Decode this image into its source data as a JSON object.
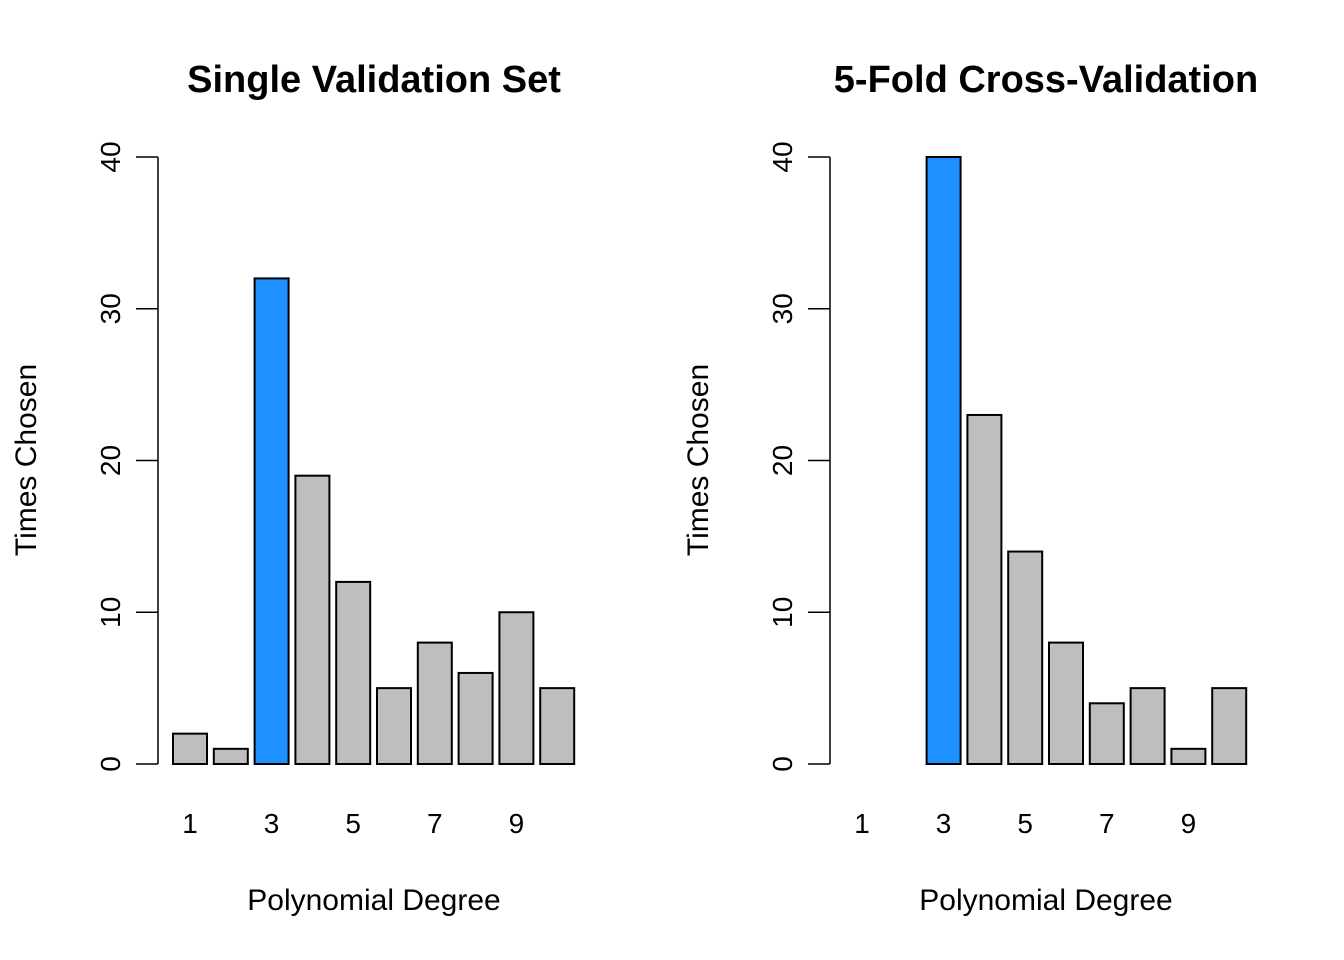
{
  "chart_data": [
    {
      "type": "bar",
      "title": "Single Validation Set",
      "xlabel": "Polynomial Degree",
      "ylabel": "Times Chosen",
      "categories": [
        "1",
        "2",
        "3",
        "4",
        "5",
        "6",
        "7",
        "8",
        "9",
        "10"
      ],
      "values": [
        2,
        1,
        32,
        19,
        12,
        5,
        8,
        6,
        10,
        5
      ],
      "highlight_index": 2,
      "ylim": [
        0,
        40
      ],
      "yticks": [
        0,
        10,
        20,
        30,
        40
      ],
      "xtick_labels": [
        "1",
        "3",
        "5",
        "7",
        "9"
      ],
      "grid": false
    },
    {
      "type": "bar",
      "title": "5-Fold Cross-Validation",
      "xlabel": "Polynomial Degree",
      "ylabel": "Times Chosen",
      "categories": [
        "1",
        "2",
        "3",
        "4",
        "5",
        "6",
        "7",
        "8",
        "9",
        "10"
      ],
      "values": [
        0,
        0,
        40,
        23,
        14,
        8,
        4,
        5,
        1,
        5
      ],
      "highlight_index": 2,
      "ylim": [
        0,
        40
      ],
      "yticks": [
        0,
        10,
        20,
        30,
        40
      ],
      "xtick_labels": [
        "1",
        "3",
        "5",
        "7",
        "9"
      ],
      "grid": false
    }
  ],
  "colors": {
    "bar_default": "#bebebe",
    "bar_highlight": "#1e90ff",
    "axis": "#000000"
  }
}
